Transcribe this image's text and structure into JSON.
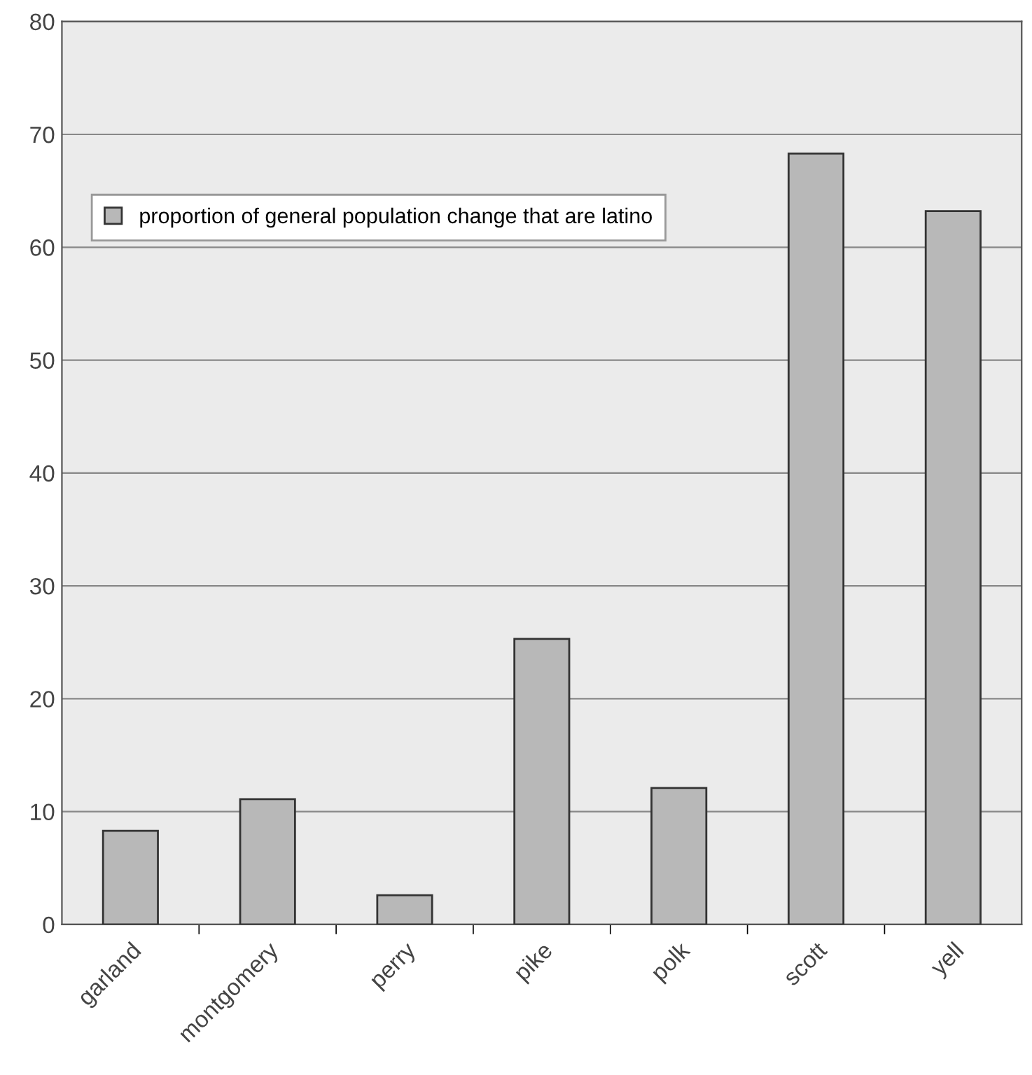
{
  "chart_data": {
    "type": "bar",
    "categories": [
      "garland",
      "montgomery",
      "perry",
      "pike",
      "polk",
      "scott",
      "yell"
    ],
    "series": [
      {
        "name": "proportion of general population change that are latino",
        "color": "#b8b8b8",
        "values": [
          8.3,
          11.1,
          2.6,
          25.3,
          12.1,
          68.3,
          63.2
        ]
      }
    ],
    "ylim": [
      0,
      80
    ],
    "yticks": [
      0,
      10,
      20,
      30,
      40,
      50,
      60,
      70,
      80
    ],
    "grid": "y",
    "legend": "left"
  }
}
